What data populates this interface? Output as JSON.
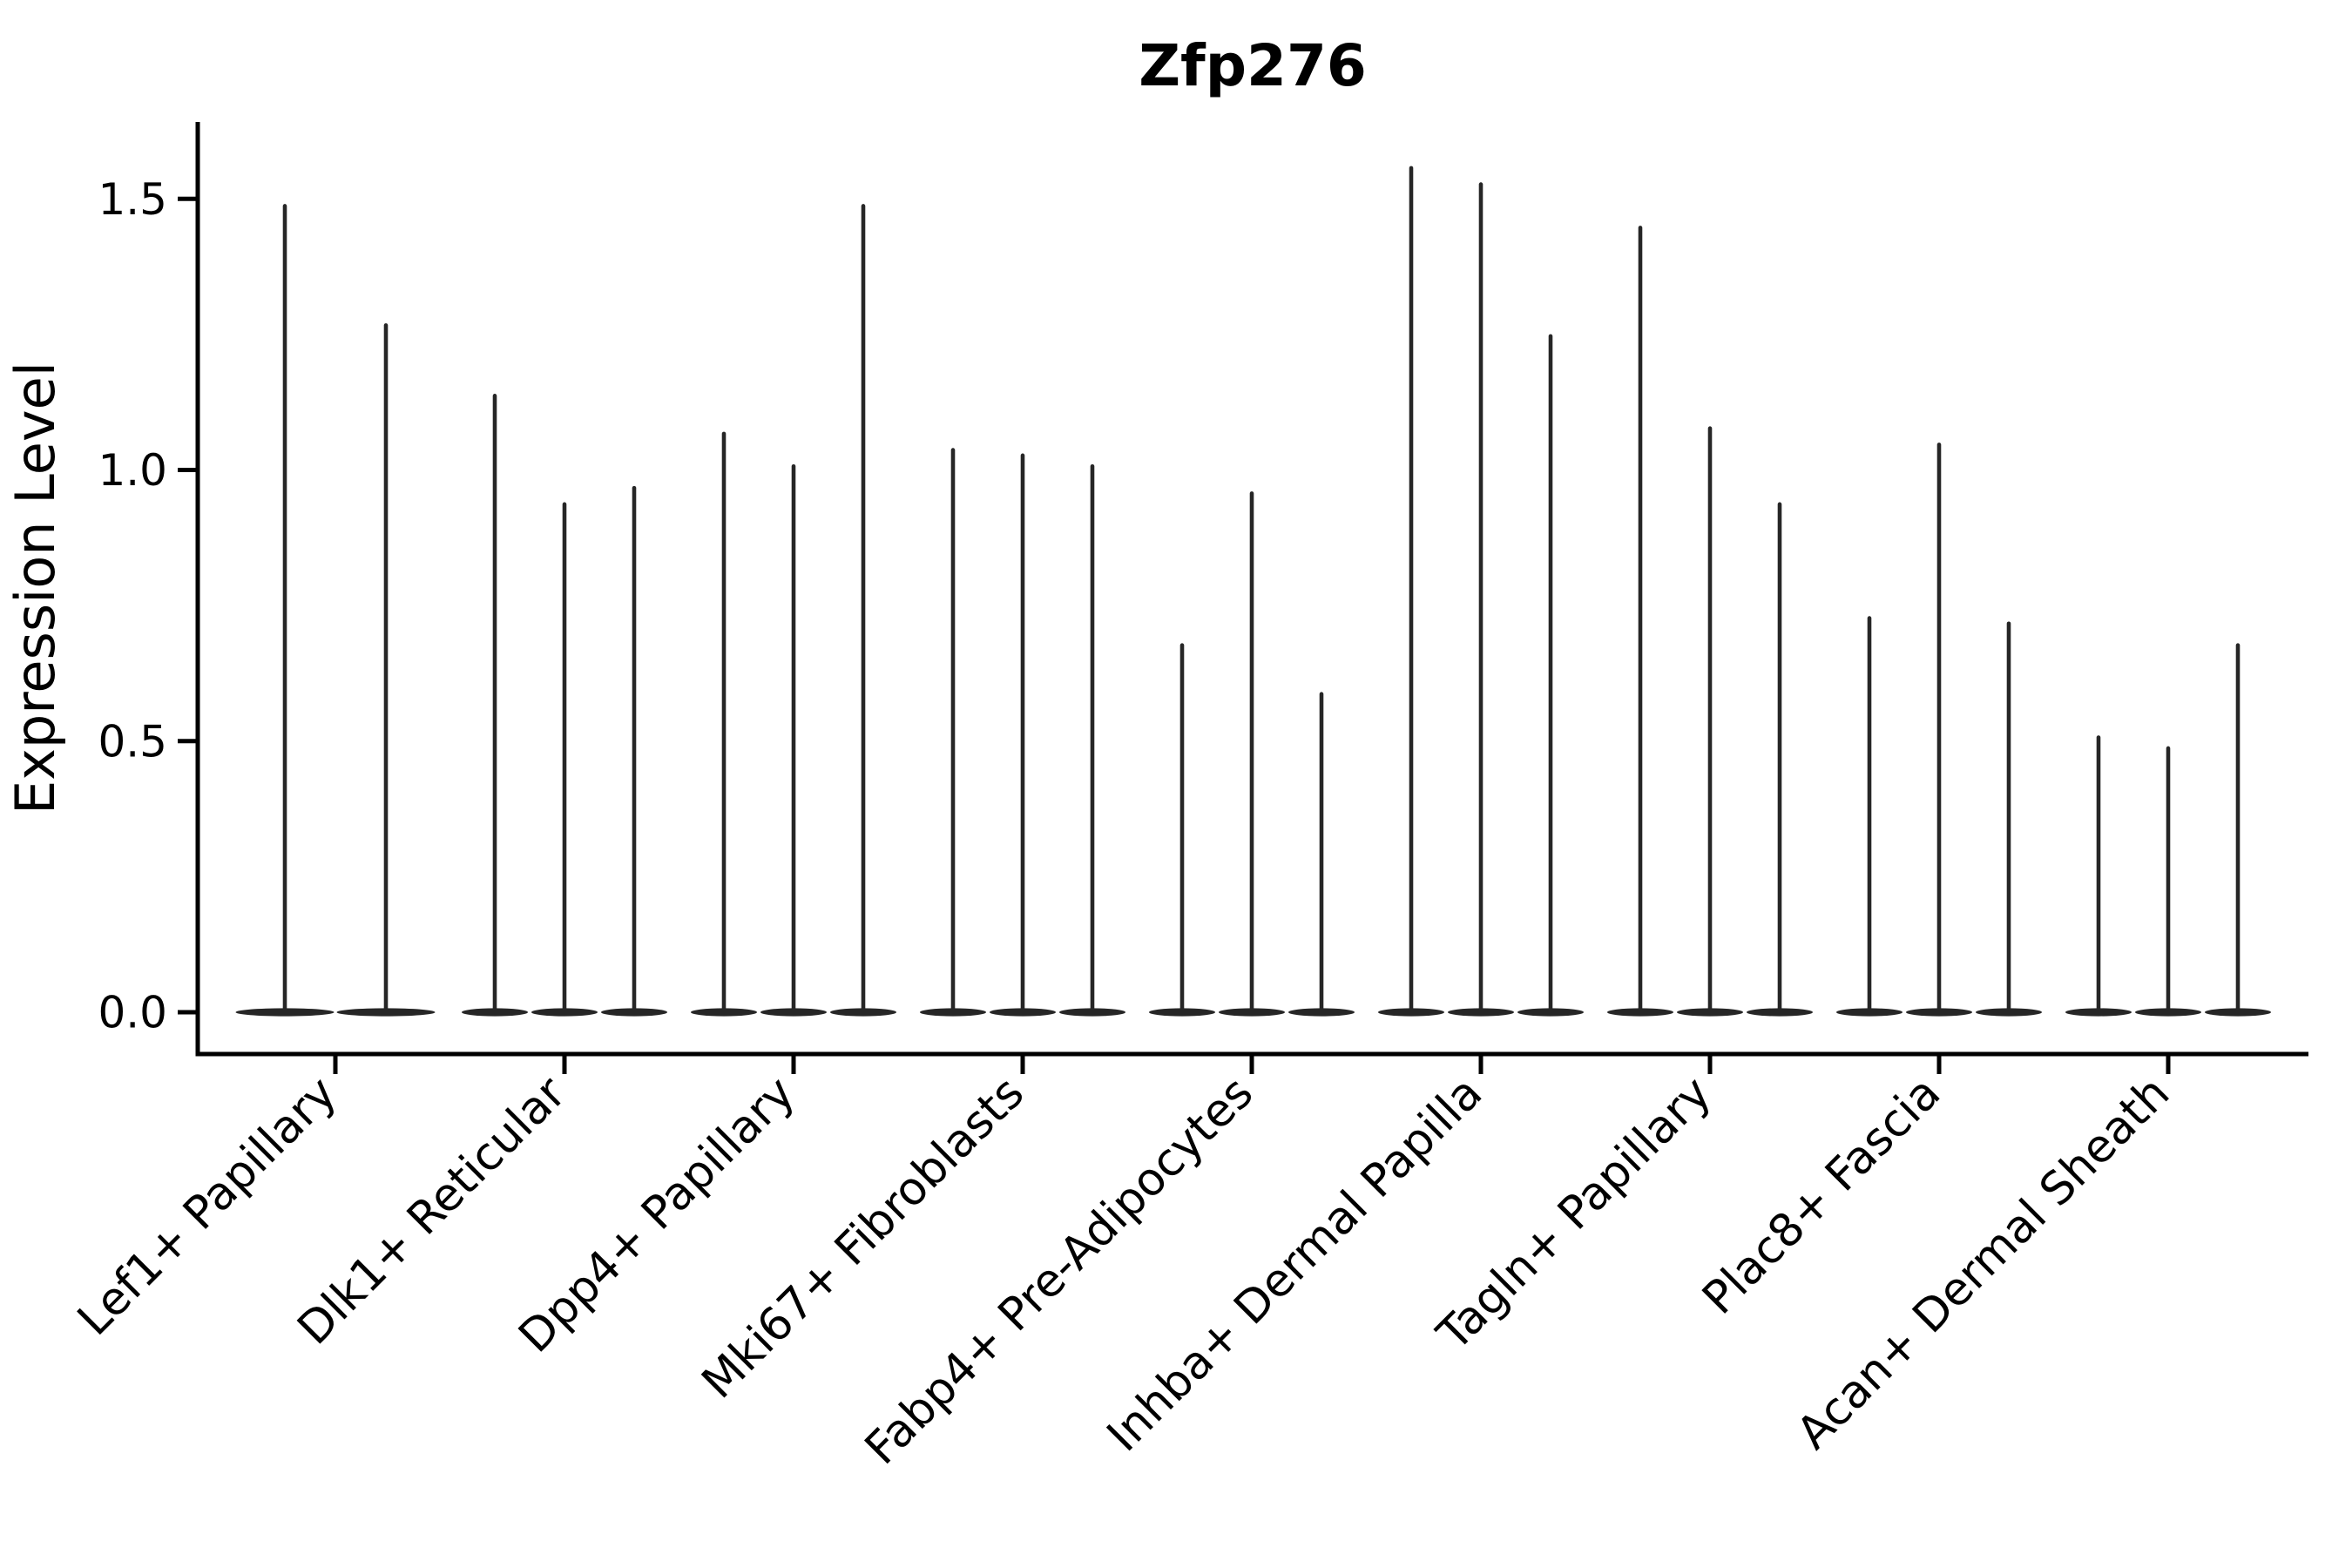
{
  "figure": {
    "background": "#ffffff",
    "ink_color": "#262626",
    "axis_color": "#000000"
  },
  "chart_data": {
    "type": "violin",
    "title": "Zfp276",
    "ylabel": "Expression Level",
    "xlabel": "",
    "grid": false,
    "legend": "none",
    "ylim": [
      -0.08,
      1.64
    ],
    "ytick_values": [
      0.0,
      0.5,
      1.0,
      1.5
    ],
    "ytick_labels": [
      "0.0",
      "0.5",
      "1.0",
      "1.5"
    ],
    "categories": [
      "Lef1+ Papillary",
      "Dlk1+ Reticular",
      "Dpp4+ Papillary",
      "Mki67+ Fibroblasts",
      "Fabp4+ Pre-Adipocytes",
      "Inhba+ Dermal Papilla",
      "Tagln+ Papillary",
      "Plac8+ Fascia",
      "Acan+ Dermal Sheath"
    ],
    "groups": [
      {
        "label": "Lef1+ Papillary",
        "violin_max": [
          1.49,
          1.27
        ]
      },
      {
        "label": "Dlk1+ Reticular",
        "violin_max": [
          1.14,
          0.94,
          0.97
        ]
      },
      {
        "label": "Dpp4+ Papillary",
        "violin_max": [
          1.07,
          1.01,
          1.49
        ]
      },
      {
        "label": "Mki67+ Fibroblasts",
        "violin_max": [
          1.04,
          1.03,
          1.01
        ]
      },
      {
        "label": "Fabp4+ Pre-Adipocytes",
        "violin_max": [
          0.68,
          0.96,
          0.59
        ]
      },
      {
        "label": "Inhba+ Dermal Papilla",
        "violin_max": [
          1.56,
          1.53,
          1.25
        ]
      },
      {
        "label": "Tagln+ Papillary",
        "violin_max": [
          1.45,
          1.08,
          0.94
        ]
      },
      {
        "label": "Plac8+ Fascia",
        "violin_max": [
          0.73,
          1.05,
          0.72
        ]
      },
      {
        "label": "Acan+ Dermal Sheath",
        "violin_max": [
          0.51,
          0.49,
          0.68
        ]
      }
    ]
  }
}
